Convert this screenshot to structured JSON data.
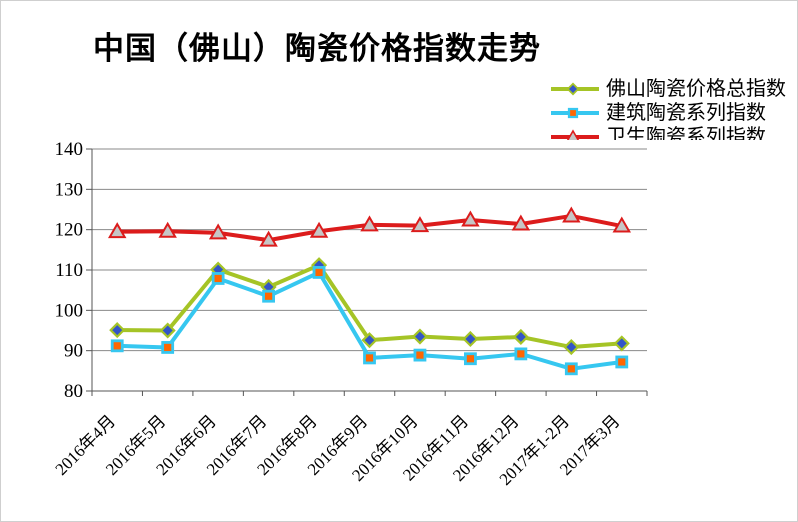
{
  "chart_data": {
    "type": "line",
    "title": "中国（佛山）陶瓷价格指数走势",
    "xlabel": "",
    "ylabel": "",
    "categories": [
      "2016年4月",
      "2016年5月",
      "2016年6月",
      "2016年7月",
      "2016年8月",
      "2016年9月",
      "2016年10月",
      "2016年11月",
      "2016年12月",
      "2017年1-2月",
      "2017年3月"
    ],
    "series": [
      {
        "name": "佛山陶瓷价格总指数",
        "color": "#a5c426",
        "marker": "diamond",
        "marker_fill": "#3355c8",
        "values": [
          95.1,
          95.0,
          110.1,
          105.8,
          111.2,
          92.6,
          93.5,
          92.9,
          93.4,
          90.9,
          91.8
        ]
      },
      {
        "name": "建筑陶瓷系列指数",
        "color": "#36c7f0",
        "marker": "square",
        "marker_fill": "#ff6600",
        "values": [
          91.2,
          90.8,
          107.9,
          103.5,
          109.4,
          88.2,
          88.9,
          88.0,
          89.2,
          85.5,
          87.2
        ]
      },
      {
        "name": "卫生陶瓷系列指数",
        "color": "#dc1c1c",
        "marker": "triangle",
        "marker_fill": "#c6c6c6",
        "values": [
          119.5,
          119.6,
          119.2,
          117.4,
          119.6,
          121.2,
          121.0,
          122.4,
          121.4,
          123.4,
          120.9
        ]
      }
    ],
    "ylim": [
      80,
      140
    ],
    "ytick_step": 10,
    "ytick_labels": [
      "80",
      "90",
      "100",
      "110",
      "120",
      "130",
      "140"
    ],
    "grid": true,
    "legend_position": "top-right",
    "grid_color": "#8a8a8a",
    "axis_color": "#555555",
    "text_color": "#000000",
    "background_color": "#ffffff"
  }
}
